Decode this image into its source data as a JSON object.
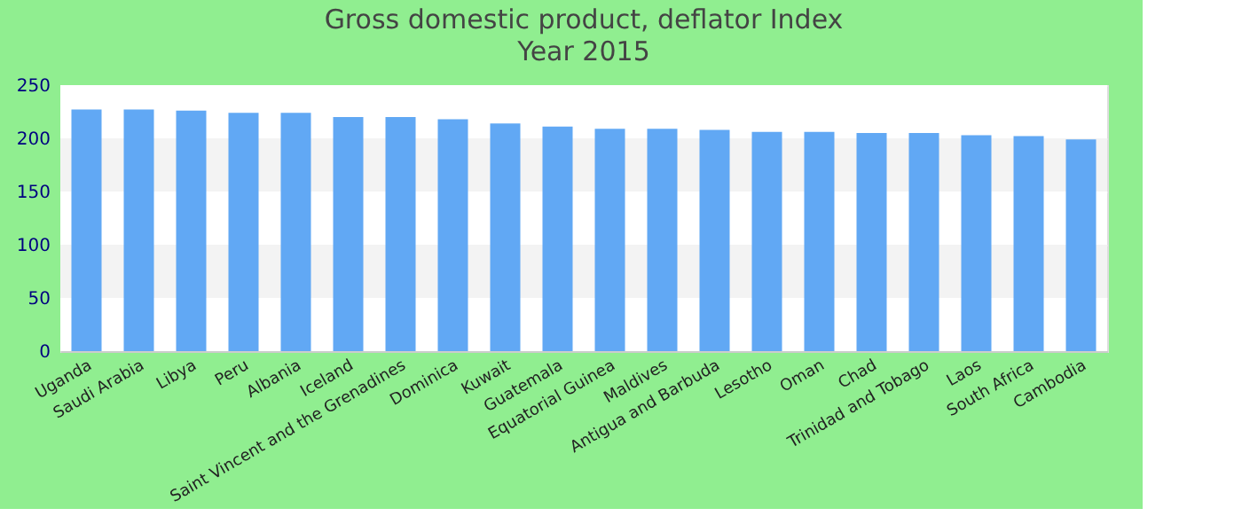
{
  "chart_data": {
    "type": "bar",
    "title": "Gross domestic product, deflator  Index",
    "subtitle": "Year 2015",
    "categories": [
      "Uganda",
      "Saudi Arabia",
      "Libya",
      "Peru",
      "Albania",
      "Iceland",
      "Saint Vincent and the Grenadines",
      "Dominica",
      "Kuwait",
      "Guatemala",
      "Equatorial Guinea",
      "Maldives",
      "Antigua and Barbuda",
      "Lesotho",
      "Oman",
      "Chad",
      "Trinidad and Tobago",
      "Laos",
      "South Africa",
      "Cambodia"
    ],
    "values": [
      227,
      227,
      226,
      224,
      224,
      220,
      220,
      218,
      214,
      211,
      209,
      209,
      208,
      206,
      206,
      205,
      205,
      203,
      202,
      199
    ],
    "color": "#61a8f4",
    "ylim": [
      0,
      250
    ],
    "yticks": [
      0,
      50,
      100,
      150,
      200,
      250
    ],
    "grid": "y"
  }
}
